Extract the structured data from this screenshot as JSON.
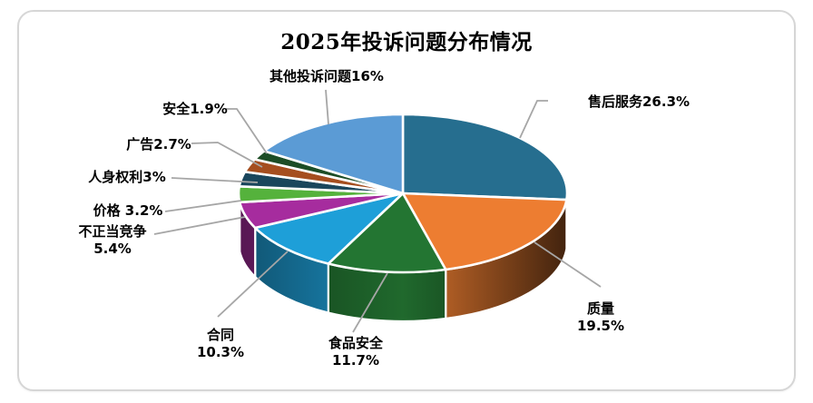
{
  "chart_data": {
    "type": "pie",
    "variant": "3d",
    "title": "2025年投诉问题分布情况",
    "legend": "none",
    "start_angle_deg": 0,
    "direction": "clockwise",
    "unit": "%",
    "leader_line_color": "#A6A6A6",
    "slices": [
      {
        "name": "售后服务",
        "value": 26.3,
        "label": "售后服务26.3%",
        "color": "#266E8F"
      },
      {
        "name": "质量",
        "value": 19.5,
        "label": "质量\n19.5%",
        "color": "#ED7D31"
      },
      {
        "name": "食品安全",
        "value": 11.7,
        "label": "食品安全\n11.7%",
        "color": "#237532"
      },
      {
        "name": "合同",
        "value": 10.3,
        "label": "合同\n10.3%",
        "color": "#1E9FD8"
      },
      {
        "name": "不正当竞争",
        "value": 5.4,
        "label": "不正当竞争\n5.4%",
        "color": "#A62C9E"
      },
      {
        "name": "价格",
        "value": 3.2,
        "label": "价格 3.2%",
        "color": "#55B23C"
      },
      {
        "name": "人身权利",
        "value": 3,
        "label": "人身权利3%",
        "color": "#1A465C"
      },
      {
        "name": "广告",
        "value": 2.7,
        "label": "广告2.7%",
        "color": "#A54E1F"
      },
      {
        "name": "安全",
        "value": 1.9,
        "label": "安全1.9%",
        "color": "#1C4D26"
      },
      {
        "name": "其他投诉问题",
        "value": 16,
        "label": "其他投诉问题16%",
        "color": "#5B9BD5"
      }
    ]
  }
}
